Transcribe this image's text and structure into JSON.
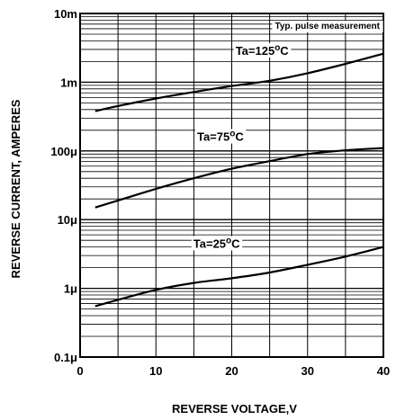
{
  "chart_data": {
    "type": "line",
    "title": "",
    "xlabel": "REVERSE VOLTAGE,V",
    "ylabel": "REVERSE CURRENT, AMPERES",
    "x_scale": "linear",
    "y_scale": "log",
    "xlim": [
      0,
      40
    ],
    "ylim": [
      1e-07,
      0.01
    ],
    "x_ticks": [
      0,
      10,
      20,
      30,
      40
    ],
    "x_tick_labels": [
      "0",
      "10",
      "20",
      "30",
      "40"
    ],
    "y_ticks": [
      1e-07,
      1e-06,
      1e-05,
      0.0001,
      0.001,
      0.01
    ],
    "y_tick_labels": [
      "0.1μ",
      "1μ",
      "10μ",
      "100μ",
      "1m",
      "10m"
    ],
    "grid": true,
    "annotation": "Typ. pulse measurement",
    "series": [
      {
        "name": "Ta=125°C",
        "label_text": "Ta=125",
        "label_unit": "C",
        "x": [
          2,
          5,
          10,
          15,
          20,
          25,
          30,
          35,
          40
        ],
        "y": [
          0.00038,
          0.00045,
          0.00058,
          0.00072,
          0.00088,
          0.00105,
          0.00135,
          0.00185,
          0.0026
        ]
      },
      {
        "name": "Ta=75°C",
        "label_text": "Ta=75",
        "label_unit": "C",
        "x": [
          2,
          5,
          10,
          15,
          20,
          25,
          30,
          35,
          40
        ],
        "y": [
          1.5e-05,
          1.9e-05,
          2.8e-05,
          4e-05,
          5.5e-05,
          7.1e-05,
          9e-05,
          0.000102,
          0.00011
        ]
      },
      {
        "name": "Ta=25°C",
        "label_text": "Ta=25",
        "label_unit": "C",
        "x": [
          2,
          5,
          10,
          15,
          20,
          25,
          30,
          35,
          40
        ],
        "y": [
          5.5e-07,
          6.8e-07,
          9.5e-07,
          1.2e-06,
          1.4e-06,
          1.7e-06,
          2.2e-06,
          2.9e-06,
          4e-06
        ]
      }
    ]
  }
}
